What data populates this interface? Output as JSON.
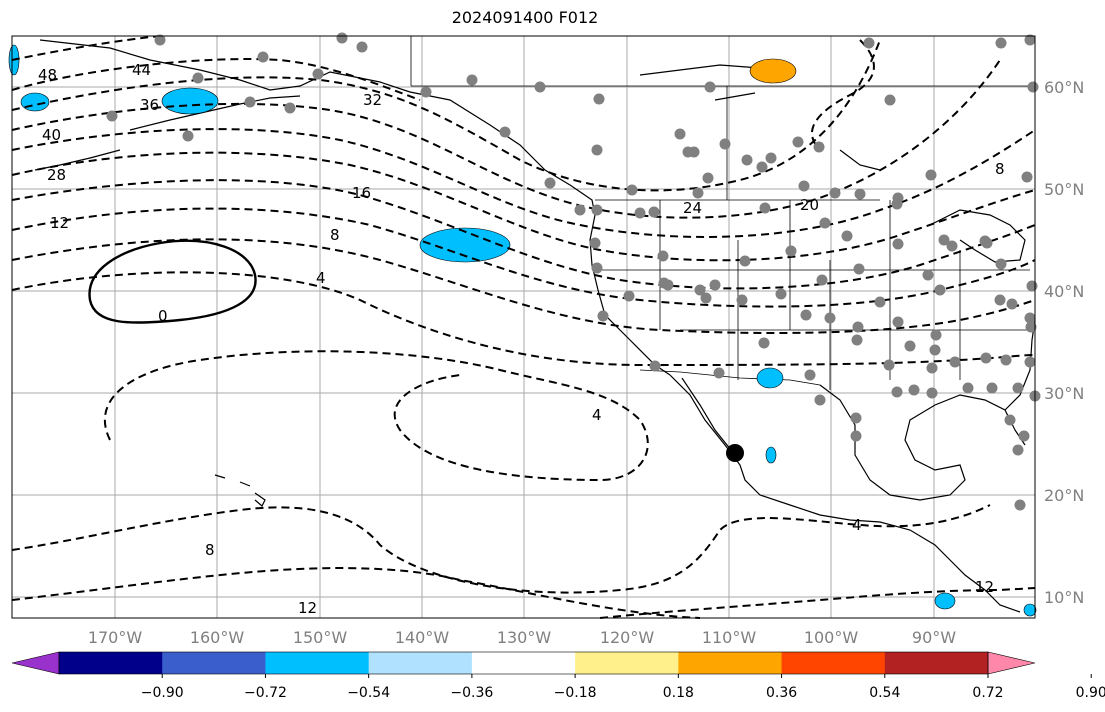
{
  "title": "2024091400 F012",
  "map": {
    "projection": "PlateCarree",
    "lon_range": [
      -180,
      -80
    ],
    "lat_range": [
      8,
      65
    ],
    "gridlines": true,
    "lon_labels": [
      "170°W",
      "160°W",
      "150°W",
      "140°W",
      "130°W",
      "120°W",
      "110°W",
      "100°W",
      "90°W"
    ],
    "lat_labels": [
      "60°N",
      "50°N",
      "40°N",
      "30°N",
      "20°N",
      "10°N"
    ]
  },
  "contour_labels": [
    "48",
    "44",
    "36",
    "32",
    "40",
    "28",
    "12",
    "16",
    "8",
    "4",
    "0",
    "24",
    "20",
    "8",
    "4",
    "8",
    "4",
    "12",
    "12"
  ],
  "colorbar": {
    "ticks": [
      "−0.90",
      "−0.72",
      "−0.54",
      "−0.36",
      "−0.18",
      "0.18",
      "0.36",
      "0.54",
      "0.72",
      "0.90"
    ],
    "colors": [
      "#9932cc",
      "#00008b",
      "#3a5fcd",
      "#00bfff",
      "#b0e2ff",
      "#ffffff",
      "#fff08c",
      "#ffa500",
      "#ff4500",
      "#b22222",
      "#ff88aa"
    ]
  }
}
